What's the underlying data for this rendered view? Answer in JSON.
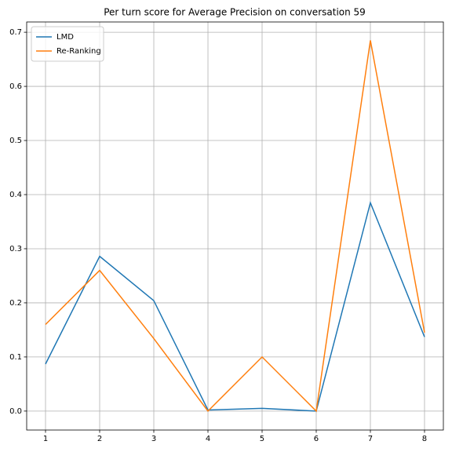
{
  "chart_data": {
    "type": "line",
    "title": "Per turn score for Average Precision on conversation 59",
    "x": [
      1,
      2,
      3,
      4,
      5,
      6,
      7,
      8
    ],
    "series": [
      {
        "name": "LMD",
        "color": "#1f77b4",
        "values": [
          0.087,
          0.286,
          0.204,
          0.002,
          0.005,
          0.0,
          0.385,
          0.137
        ]
      },
      {
        "name": "Re-Ranking",
        "color": "#ff7f0e",
        "values": [
          0.16,
          0.26,
          0.134,
          0.0,
          0.1,
          0.0,
          0.685,
          0.145
        ]
      }
    ],
    "xlim": [
      0.652,
      8.348
    ],
    "ylim": [
      -0.035,
      0.719
    ],
    "xticks": [
      1,
      2,
      3,
      4,
      5,
      6,
      7,
      8
    ],
    "yticks": [
      {
        "value": 0,
        "label": "0.0"
      },
      0.1,
      0.2,
      0.3,
      0.4,
      0.5,
      0.6,
      0.7
    ],
    "grid": true,
    "legend": "upper left"
  }
}
